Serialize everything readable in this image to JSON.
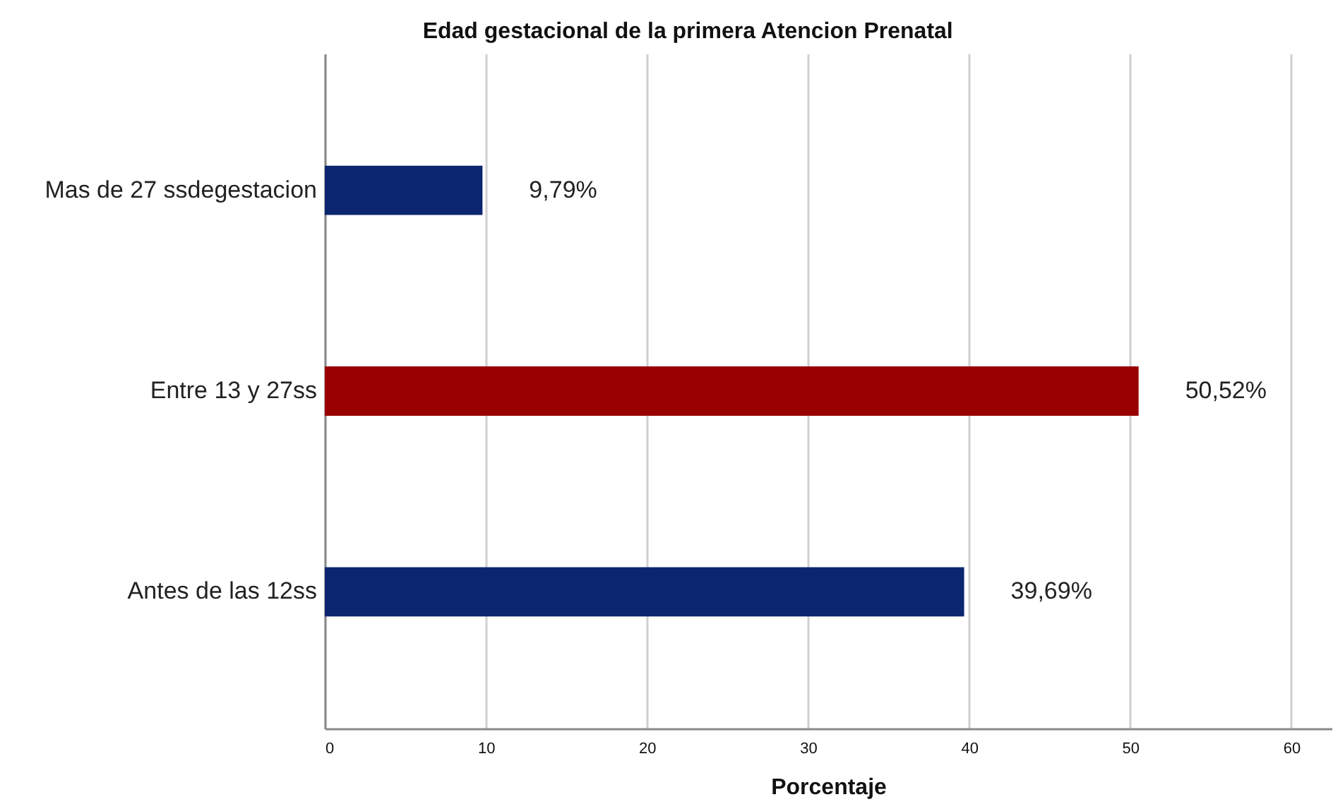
{
  "chart_data": {
    "type": "bar",
    "orientation": "horizontal",
    "title": "Edad gestacional de la primera Atencion Prenatal",
    "xlabel": "Porcentaje",
    "categories": [
      "Mas de 27 ssdegestacion",
      "Entre 13 y 27ss",
      "Antes de las 12ss"
    ],
    "values": [
      9.79,
      50.52,
      39.69
    ],
    "colors": [
      "#0b2570",
      "#990000",
      "#0b2570"
    ],
    "value_labels": [
      "9,79%",
      "50,52%",
      "39,69%"
    ],
    "xlim": [
      0,
      62.5
    ],
    "xticks": [
      0,
      10,
      20,
      30,
      40,
      50,
      60
    ],
    "grid": "x"
  }
}
